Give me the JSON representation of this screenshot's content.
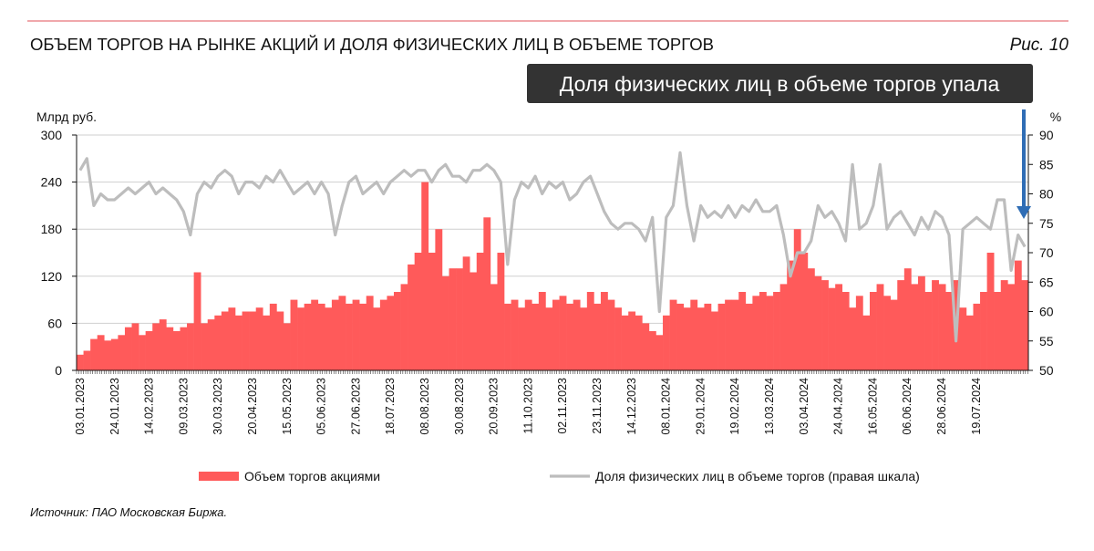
{
  "header": {
    "title": "ОБЪЕМ ТОРГОВ НА РЫНКЕ АКЦИЙ И ДОЛЯ ФИЗИЧЕСКИХ ЛИЦ В ОБЪЕМЕ ТОРГОВ",
    "figure_label": "Рис. 10"
  },
  "callout": "Доля физических лиц в объеме торгов упала",
  "source": "Источник: ПАО Московская Биржа.",
  "colors": {
    "bars": "#ff5a5a",
    "line": "#bdbdbd",
    "arrow": "#2f6db5",
    "callout_bg": "#333333",
    "rule": "#e0505a"
  },
  "chart_data": {
    "type": "bar+line",
    "title": "ОБЪЕМ ТОРГОВ НА РЫНКЕ АКЦИЙ И ДОЛЯ ФИЗИЧЕСКИХ ЛИЦ В ОБЪЕМЕ ТОРГОВ",
    "ylabel_left": "Млрд руб.",
    "ylabel_right": "%",
    "ylim_left": [
      0,
      300
    ],
    "ylim_right": [
      50,
      90
    ],
    "yticks_left": [
      "0",
      "60",
      "120",
      "180",
      "240",
      "300"
    ],
    "yticks_right": [
      "50",
      "55",
      "60",
      "65",
      "70",
      "75",
      "80",
      "85",
      "90"
    ],
    "grid": true,
    "legend_position": "bottom",
    "x_tick_labels": [
      "03.01.2023",
      "24.01.2023",
      "14.02.2023",
      "09.03.2023",
      "30.03.2023",
      "20.04.2023",
      "15.05.2023",
      "05.06.2023",
      "27.06.2023",
      "18.07.2023",
      "08.08.2023",
      "30.08.2023",
      "20.09.2023",
      "11.10.2023",
      "02.11.2023",
      "23.11.2023",
      "14.12.2023",
      "08.01.2024",
      "29.01.2024",
      "19.02.2024",
      "13.03.2024",
      "03.04.2024",
      "24.04.2024",
      "16.05.2024",
      "06.06.2024",
      "28.06.2024",
      "19.07.2024"
    ],
    "series": [
      {
        "name": "Объем торгов акциями",
        "axis": "left",
        "type": "bar",
        "values": [
          20,
          25,
          40,
          45,
          38,
          40,
          45,
          55,
          60,
          45,
          50,
          60,
          65,
          55,
          50,
          55,
          60,
          125,
          60,
          65,
          70,
          75,
          80,
          70,
          75,
          75,
          80,
          70,
          85,
          75,
          60,
          90,
          80,
          85,
          90,
          85,
          80,
          90,
          95,
          85,
          90,
          85,
          95,
          80,
          90,
          95,
          100,
          110,
          135,
          150,
          240,
          150,
          180,
          120,
          130,
          130,
          145,
          125,
          150,
          195,
          110,
          150,
          85,
          90,
          80,
          90,
          85,
          100,
          80,
          90,
          95,
          85,
          90,
          80,
          100,
          85,
          100,
          90,
          80,
          70,
          75,
          70,
          60,
          50,
          45,
          70,
          90,
          85,
          80,
          90,
          80,
          85,
          75,
          85,
          90,
          90,
          100,
          85,
          95,
          100,
          95,
          100,
          110,
          140,
          180,
          150,
          130,
          120,
          115,
          105,
          110,
          100,
          80,
          95,
          70,
          100,
          110,
          95,
          90,
          115,
          130,
          110,
          120,
          100,
          115,
          110,
          100,
          115,
          80,
          70,
          85,
          100,
          150,
          100,
          115,
          110,
          140,
          115
        ]
      },
      {
        "name": "Доля физических лиц в объеме торгов (правая шкала)",
        "axis": "right",
        "type": "line",
        "values": [
          84,
          86,
          78,
          80,
          79,
          79,
          80,
          81,
          80,
          81,
          82,
          80,
          81,
          80,
          79,
          77,
          73,
          80,
          82,
          81,
          83,
          84,
          83,
          80,
          82,
          82,
          81,
          83,
          82,
          84,
          82,
          80,
          81,
          82,
          80,
          82,
          80,
          73,
          78,
          82,
          83,
          80,
          81,
          82,
          80,
          82,
          83,
          84,
          83,
          84,
          84,
          82,
          84,
          85,
          83,
          83,
          82,
          84,
          84,
          85,
          84,
          82,
          68,
          79,
          82,
          81,
          83,
          80,
          82,
          81,
          82,
          79,
          80,
          82,
          83,
          80,
          77,
          75,
          74,
          75,
          75,
          74,
          72,
          76,
          60,
          76,
          78,
          87,
          78,
          72,
          78,
          76,
          77,
          76,
          78,
          76,
          78,
          77,
          79,
          77,
          77,
          78,
          73,
          66,
          70,
          70,
          72,
          78,
          76,
          77,
          75,
          72,
          85,
          74,
          75,
          78,
          85,
          74,
          76,
          77,
          75,
          73,
          76,
          74,
          77,
          76,
          73,
          55,
          74,
          75,
          76,
          75,
          74,
          79,
          79,
          67,
          73,
          71
        ]
      }
    ]
  }
}
